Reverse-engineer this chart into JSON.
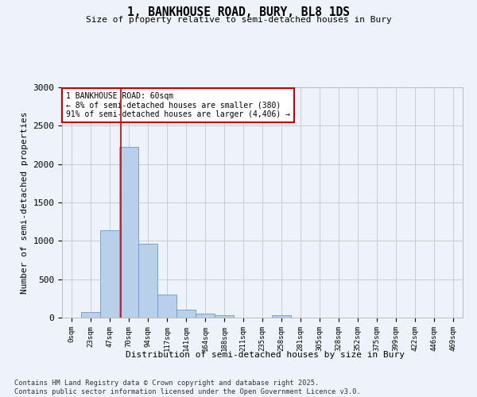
{
  "title_line1": "1, BANKHOUSE ROAD, BURY, BL8 1DS",
  "title_line2": "Size of property relative to semi-detached houses in Bury",
  "xlabel": "Distribution of semi-detached houses by size in Bury",
  "ylabel": "Number of semi-detached properties",
  "bar_labels": [
    "0sqm",
    "23sqm",
    "47sqm",
    "70sqm",
    "94sqm",
    "117sqm",
    "141sqm",
    "164sqm",
    "188sqm",
    "211sqm",
    "235sqm",
    "258sqm",
    "281sqm",
    "305sqm",
    "328sqm",
    "352sqm",
    "375sqm",
    "399sqm",
    "422sqm",
    "446sqm",
    "469sqm"
  ],
  "bar_values": [
    0,
    75,
    1140,
    2220,
    960,
    305,
    105,
    55,
    30,
    0,
    0,
    30,
    0,
    0,
    0,
    0,
    0,
    0,
    0,
    0,
    0
  ],
  "bar_color": "#b8d0ea",
  "bar_edge_color": "#6699cc",
  "annotation_text": "1 BANKHOUSE ROAD: 60sqm\n← 8% of semi-detached houses are smaller (380)\n91% of semi-detached houses are larger (4,406) →",
  "annotation_box_color": "#ffffff",
  "annotation_box_edge_color": "#cc0000",
  "red_line_color": "#cc0000",
  "ylim": [
    0,
    3000
  ],
  "yticks": [
    0,
    500,
    1000,
    1500,
    2000,
    2500,
    3000
  ],
  "grid_color": "#cccccc",
  "background_color": "#eef2fa",
  "footer_line1": "Contains HM Land Registry data © Crown copyright and database right 2025.",
  "footer_line2": "Contains public sector information licensed under the Open Government Licence v3.0."
}
